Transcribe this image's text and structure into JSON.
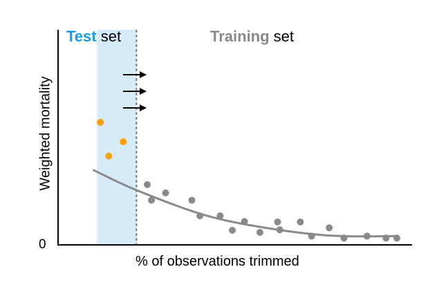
{
  "chart_data": {
    "type": "scatter",
    "title": "",
    "xlabel": "% of observations trimmed",
    "ylabel": "Weighted mortality",
    "y_tick_labels": [
      "0"
    ],
    "xlim": [
      0,
      100
    ],
    "ylim": [
      0,
      100
    ],
    "grid": false,
    "test_region": {
      "x_start": 6.5,
      "x_end": 18.8
    },
    "annotations": {
      "test": {
        "bold": "Test",
        "rest": " set"
      },
      "training": {
        "bold": "Training",
        "rest": " set"
      }
    },
    "colors": {
      "test": "#ff9f00",
      "training": "#8a8a8a",
      "test_label": "#1a9ae8",
      "training_label": "#8a8a8a",
      "region": "#d6ecfb",
      "curve": "#8a8a8a",
      "axis": "#000000"
    },
    "series": [
      {
        "name": "Test set",
        "points": [
          {
            "x": 7.6,
            "y": 73.8
          },
          {
            "x": 14.7,
            "y": 62.1
          },
          {
            "x": 10.2,
            "y": 53.5
          }
        ]
      },
      {
        "name": "Training set",
        "points": [
          {
            "x": 22.2,
            "y": 36.3
          },
          {
            "x": 23.5,
            "y": 26.9
          },
          {
            "x": 27.9,
            "y": 31.3
          },
          {
            "x": 36.1,
            "y": 26.9
          },
          {
            "x": 38.6,
            "y": 17.5
          },
          {
            "x": 44.9,
            "y": 17.5
          },
          {
            "x": 48.7,
            "y": 8.8
          },
          {
            "x": 52.5,
            "y": 14.1
          },
          {
            "x": 57.3,
            "y": 7.5
          },
          {
            "x": 62.8,
            "y": 13.8
          },
          {
            "x": 63.5,
            "y": 9.1
          },
          {
            "x": 69.9,
            "y": 13.8
          },
          {
            "x": 73.4,
            "y": 5.3
          },
          {
            "x": 78.9,
            "y": 10.3
          },
          {
            "x": 83.5,
            "y": 4.1
          },
          {
            "x": 90.7,
            "y": 5.3
          },
          {
            "x": 96.6,
            "y": 4.1
          },
          {
            "x": 100.0,
            "y": 4.1
          }
        ]
      }
    ],
    "trend_curve": [
      {
        "x": 5.5,
        "y": 45.0
      },
      {
        "x": 18.8,
        "y": 33.0
      },
      {
        "x": 40,
        "y": 18.0
      },
      {
        "x": 60,
        "y": 10.0
      },
      {
        "x": 80,
        "y": 5.5
      },
      {
        "x": 100,
        "y": 5.3
      }
    ],
    "arrow_count": 3
  }
}
